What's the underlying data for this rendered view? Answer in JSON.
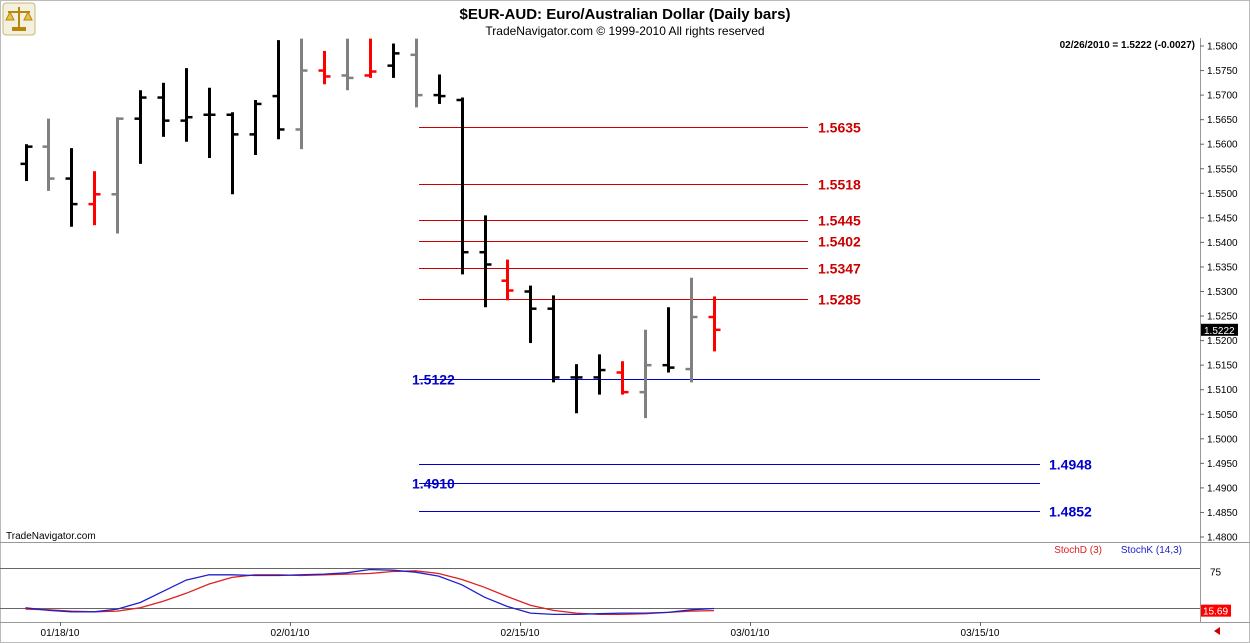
{
  "header": {
    "title": "$EUR-AUD:  Euro/Australian Dollar  (Daily bars)",
    "subtitle": "TradeNavigator.com © 1999-2010 All rights reserved",
    "last_quote": "02/26/2010 = 1.5222 (-0.0027)",
    "watermark": "TradeNavigator.com",
    "logo_icon": "scales-logo-icon"
  },
  "colors": {
    "bar_up": "#000000",
    "bar_down": "#808080",
    "bar_highlight": "#ff0000",
    "resistance": "#cc0000",
    "support": "#0000cc",
    "stoch_d": "#dd2020",
    "stoch_k": "#2020cc",
    "last_price_bg": "#000000",
    "stoch_value_bg": "#ff0000"
  },
  "chart_data": [
    {
      "type": "ohlc",
      "title": "$EUR-AUD:  Euro/Australian Dollar  (Daily bars)",
      "x_dates": [
        "01/18/10",
        "02/01/10",
        "02/15/10",
        "03/01/10",
        "03/15/10"
      ],
      "y_ticks": [
        "1.5800",
        "1.5750",
        "1.5700",
        "1.5650",
        "1.5600",
        "1.5550",
        "1.5500",
        "1.5450",
        "1.5400",
        "1.5350",
        "1.5300",
        "1.5250",
        "1.5200",
        "1.5150",
        "1.5100",
        "1.5050",
        "1.5000",
        "1.4950",
        "1.4900",
        "1.4850",
        "1.4800"
      ],
      "ylim": [
        1.478,
        1.582
      ],
      "bars": [
        {
          "o": 1.556,
          "h": 1.56,
          "l": 1.5525,
          "c": 1.5595,
          "color": "up"
        },
        {
          "o": 1.5595,
          "h": 1.5652,
          "l": 1.5505,
          "c": 1.553,
          "color": "down"
        },
        {
          "o": 1.553,
          "h": 1.5592,
          "l": 1.5432,
          "c": 1.5478,
          "color": "up"
        },
        {
          "o": 1.5478,
          "h": 1.5545,
          "l": 1.5435,
          "c": 1.5498,
          "color": "highlight"
        },
        {
          "o": 1.5498,
          "h": 1.5655,
          "l": 1.5418,
          "c": 1.5652,
          "color": "down"
        },
        {
          "o": 1.5652,
          "h": 1.571,
          "l": 1.556,
          "c": 1.5695,
          "color": "up"
        },
        {
          "o": 1.5695,
          "h": 1.5725,
          "l": 1.5615,
          "c": 1.5648,
          "color": "up"
        },
        {
          "o": 1.5648,
          "h": 1.5755,
          "l": 1.5605,
          "c": 1.5655,
          "color": "up"
        },
        {
          "o": 1.566,
          "h": 1.5715,
          "l": 1.5572,
          "c": 1.566,
          "color": "up"
        },
        {
          "o": 1.566,
          "h": 1.5665,
          "l": 1.5498,
          "c": 1.562,
          "color": "up"
        },
        {
          "o": 1.562,
          "h": 1.569,
          "l": 1.5578,
          "c": 1.5682,
          "color": "up"
        },
        {
          "o": 1.5698,
          "h": 1.5812,
          "l": 1.561,
          "c": 1.563,
          "color": "up"
        },
        {
          "o": 1.563,
          "h": 1.5815,
          "l": 1.559,
          "c": 1.575,
          "color": "down"
        },
        {
          "o": 1.575,
          "h": 1.579,
          "l": 1.5722,
          "c": 1.5738,
          "color": "highlight"
        },
        {
          "o": 1.574,
          "h": 1.5815,
          "l": 1.571,
          "c": 1.5735,
          "color": "down"
        },
        {
          "o": 1.574,
          "h": 1.5815,
          "l": 1.5735,
          "c": 1.5748,
          "color": "highlight"
        },
        {
          "o": 1.576,
          "h": 1.5805,
          "l": 1.5735,
          "c": 1.5785,
          "color": "up"
        },
        {
          "o": 1.5782,
          "h": 1.5815,
          "l": 1.5675,
          "c": 1.57,
          "color": "down"
        },
        {
          "o": 1.57,
          "h": 1.5742,
          "l": 1.5682,
          "c": 1.5698,
          "color": "up"
        },
        {
          "o": 1.569,
          "h": 1.5695,
          "l": 1.5335,
          "c": 1.538,
          "color": "up"
        },
        {
          "o": 1.538,
          "h": 1.5455,
          "l": 1.5268,
          "c": 1.5355,
          "color": "up"
        },
        {
          "o": 1.5322,
          "h": 1.5365,
          "l": 1.5282,
          "c": 1.5302,
          "color": "highlight"
        },
        {
          "o": 1.53,
          "h": 1.5312,
          "l": 1.5195,
          "c": 1.5265,
          "color": "up"
        },
        {
          "o": 1.5265,
          "h": 1.5292,
          "l": 1.5115,
          "c": 1.5125,
          "color": "up"
        },
        {
          "o": 1.5125,
          "h": 1.5152,
          "l": 1.5052,
          "c": 1.5125,
          "color": "up"
        },
        {
          "o": 1.5125,
          "h": 1.5172,
          "l": 1.509,
          "c": 1.514,
          "color": "up"
        },
        {
          "o": 1.5135,
          "h": 1.5158,
          "l": 1.509,
          "c": 1.5095,
          "color": "highlight"
        },
        {
          "o": 1.5095,
          "h": 1.5222,
          "l": 1.5042,
          "c": 1.515,
          "color": "down"
        },
        {
          "o": 1.515,
          "h": 1.5268,
          "l": 1.5135,
          "c": 1.5145,
          "color": "up"
        },
        {
          "o": 1.5142,
          "h": 1.5328,
          "l": 1.5115,
          "c": 1.5248,
          "color": "down"
        },
        {
          "o": 1.5248,
          "h": 1.529,
          "l": 1.5178,
          "c": 1.5222,
          "color": "highlight"
        }
      ],
      "levels": [
        {
          "value": 1.5635,
          "label": "1.5635",
          "kind": "resistance"
        },
        {
          "value": 1.5518,
          "label": "1.5518",
          "kind": "resistance"
        },
        {
          "value": 1.5445,
          "label": "1.5445",
          "kind": "resistance"
        },
        {
          "value": 1.5402,
          "label": "1.5402",
          "kind": "resistance"
        },
        {
          "value": 1.5347,
          "label": "1.5347",
          "kind": "resistance"
        },
        {
          "value": 1.5285,
          "label": "1.5285",
          "kind": "resistance"
        },
        {
          "value": 1.5122,
          "label": "1.5122",
          "kind": "support"
        },
        {
          "value": 1.4948,
          "label": "1.4948",
          "kind": "support"
        },
        {
          "value": 1.491,
          "label": "1.4910",
          "kind": "support"
        },
        {
          "value": 1.4852,
          "label": "1.4852",
          "kind": "support"
        }
      ],
      "last_price_label": "1.5222",
      "grid": false
    },
    {
      "type": "line",
      "legend": [
        "StochD (3)",
        "StochK (14,3)"
      ],
      "y_ticks": [
        "75"
      ],
      "ylim": [
        0,
        100
      ],
      "reference_levels": [
        80,
        20
      ],
      "last_value_label": "15.69",
      "series": [
        {
          "name": "StochD (3)",
          "values": [
            18,
            17,
            15,
            14,
            15,
            20,
            30,
            42,
            56,
            66,
            70,
            70,
            69,
            70,
            71,
            72,
            75,
            76,
            72,
            63,
            51,
            37,
            24,
            16,
            12,
            10,
            10,
            11,
            13,
            15,
            15.7
          ]
        },
        {
          "name": "StochK (14,3)",
          "values": [
            20,
            16,
            14,
            14,
            18,
            28,
            45,
            62,
            70,
            70,
            69,
            69,
            70,
            71,
            73,
            78,
            77,
            74,
            68,
            55,
            36,
            22,
            12,
            10,
            10,
            11,
            12,
            12,
            13,
            17,
            19
          ]
        }
      ]
    }
  ]
}
